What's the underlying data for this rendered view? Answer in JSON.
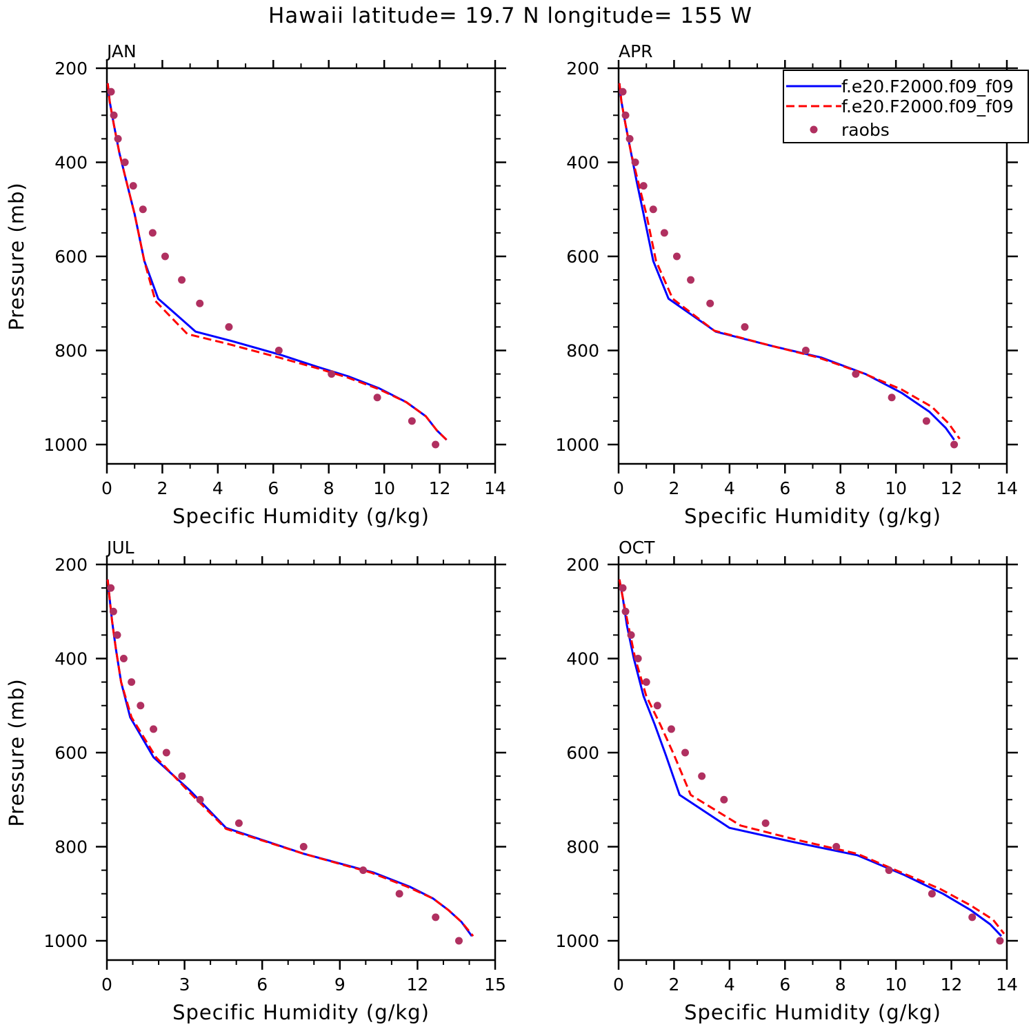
{
  "title": "Hawaii  latitude= 19.7 N longitude= 155 W",
  "legend": {
    "entries": [
      {
        "label": "f.e20.F2000.f09_f09",
        "color": "#0000ff",
        "style": "solid"
      },
      {
        "label": "f.e20.F2000.f09_f09",
        "color": "#ff0000",
        "style": "dashed"
      },
      {
        "label": "raobs",
        "color": "#b03060",
        "style": "dot"
      }
    ]
  },
  "chart_data": [
    {
      "type": "line",
      "title": "JAN",
      "xlabel": "Specific Humidity (g/kg)",
      "ylabel": "Pressure (mb)",
      "xlim": [
        0,
        14
      ],
      "ylim": [
        200,
        1000
      ],
      "y_inverted": true,
      "xticks": [
        0,
        2,
        4,
        6,
        8,
        10,
        12,
        14
      ],
      "yticks": [
        200,
        400,
        600,
        800,
        1000
      ],
      "series": [
        {
          "name": "f.e20.F2000.f09_f09",
          "style": "solid",
          "color": "#0000ff",
          "x": [
            0.03,
            0.1,
            0.25,
            0.45,
            0.7,
            1.0,
            1.35,
            1.85,
            3.2,
            4.5,
            6.3,
            7.6,
            8.7,
            9.8,
            10.8,
            11.5,
            11.9,
            12.25
          ],
          "y": [
            232,
            270,
            320,
            380,
            440,
            510,
            610,
            690,
            760,
            780,
            810,
            835,
            855,
            880,
            910,
            940,
            970,
            990
          ]
        },
        {
          "name": "f.e20.F2000.f09_f09",
          "style": "dashed",
          "color": "#ff0000",
          "x": [
            0.03,
            0.1,
            0.25,
            0.45,
            0.7,
            1.0,
            1.35,
            1.75,
            2.9,
            4.3,
            6.2,
            7.6,
            8.7,
            9.8,
            10.8,
            11.5,
            11.9,
            12.25
          ],
          "y": [
            232,
            270,
            320,
            380,
            440,
            510,
            610,
            695,
            765,
            785,
            815,
            838,
            858,
            882,
            910,
            940,
            970,
            990
          ]
        },
        {
          "name": "raobs",
          "style": "dot",
          "color": "#b03060",
          "x": [
            0.15,
            0.25,
            0.4,
            0.65,
            0.95,
            1.3,
            1.65,
            2.1,
            2.7,
            3.35,
            4.4,
            6.2,
            8.1,
            9.75,
            11.0,
            11.85
          ],
          "y": [
            250,
            300,
            350,
            400,
            450,
            500,
            550,
            600,
            650,
            700,
            750,
            800,
            850,
            900,
            950,
            1000
          ]
        }
      ]
    },
    {
      "type": "line",
      "title": "APR",
      "xlabel": "Specific Humidity (g/kg)",
      "ylabel": "",
      "xlim": [
        0,
        14
      ],
      "ylim": [
        200,
        1000
      ],
      "y_inverted": true,
      "xticks": [
        0,
        2,
        4,
        6,
        8,
        10,
        12,
        14
      ],
      "yticks": [
        200,
        400,
        600,
        800,
        1000
      ],
      "series": [
        {
          "name": "f.e20.F2000.f09_f09",
          "style": "solid",
          "color": "#0000ff",
          "x": [
            0.03,
            0.1,
            0.25,
            0.45,
            0.65,
            0.9,
            1.25,
            1.8,
            3.5,
            5.5,
            7.3,
            8.9,
            10.2,
            11.2,
            11.8,
            12.1
          ],
          "y": [
            232,
            270,
            320,
            380,
            440,
            510,
            610,
            690,
            760,
            790,
            815,
            850,
            890,
            930,
            965,
            990
          ]
        },
        {
          "name": "f.e20.F2000.f09_f09",
          "style": "dashed",
          "color": "#ff0000",
          "x": [
            0.03,
            0.1,
            0.25,
            0.45,
            0.7,
            1.0,
            1.35,
            1.95,
            3.45,
            5.5,
            7.2,
            8.8,
            10.2,
            11.3,
            11.9,
            12.3
          ],
          "y": [
            232,
            270,
            320,
            380,
            440,
            510,
            610,
            690,
            758,
            790,
            815,
            848,
            883,
            920,
            955,
            988
          ]
        },
        {
          "name": "raobs",
          "style": "dot",
          "color": "#b03060",
          "x": [
            0.15,
            0.25,
            0.4,
            0.6,
            0.9,
            1.25,
            1.65,
            2.1,
            2.6,
            3.3,
            4.55,
            6.75,
            8.55,
            9.85,
            11.1,
            12.1
          ],
          "y": [
            250,
            300,
            350,
            400,
            450,
            500,
            550,
            600,
            650,
            700,
            750,
            800,
            850,
            900,
            950,
            1000
          ]
        }
      ]
    },
    {
      "type": "line",
      "title": "JUL",
      "xlabel": "Specific Humidity (g/kg)",
      "ylabel": "Pressure (mb)",
      "xlim": [
        0,
        15
      ],
      "ylim": [
        200,
        1000
      ],
      "y_inverted": true,
      "xticks": [
        0,
        3,
        6,
        9,
        12,
        15
      ],
      "yticks": [
        200,
        400,
        600,
        800,
        1000
      ],
      "series": [
        {
          "name": "f.e20.F2000.f09_f09",
          "style": "solid",
          "color": "#0000ff",
          "x": [
            0.03,
            0.1,
            0.2,
            0.35,
            0.55,
            0.9,
            1.8,
            3.2,
            4.6,
            7.6,
            10.3,
            11.7,
            12.6,
            13.2,
            13.7,
            14.1
          ],
          "y": [
            232,
            270,
            320,
            380,
            450,
            525,
            610,
            680,
            760,
            815,
            855,
            885,
            910,
            935,
            960,
            990
          ]
        },
        {
          "name": "f.e20.F2000.f09_f09",
          "style": "dashed",
          "color": "#ff0000",
          "x": [
            0.03,
            0.1,
            0.2,
            0.35,
            0.55,
            0.95,
            1.9,
            3.2,
            4.6,
            7.6,
            10.2,
            11.6,
            12.6,
            13.2,
            13.7,
            14.15
          ],
          "y": [
            232,
            270,
            320,
            380,
            450,
            525,
            610,
            685,
            762,
            815,
            855,
            885,
            910,
            935,
            960,
            990
          ]
        },
        {
          "name": "raobs",
          "style": "dot",
          "color": "#b03060",
          "x": [
            0.15,
            0.25,
            0.4,
            0.65,
            0.95,
            1.3,
            1.8,
            2.3,
            2.9,
            3.6,
            5.1,
            7.6,
            9.9,
            11.3,
            12.7,
            13.6
          ],
          "y": [
            250,
            300,
            350,
            400,
            450,
            500,
            550,
            600,
            650,
            700,
            750,
            800,
            850,
            900,
            950,
            1000
          ]
        }
      ]
    },
    {
      "type": "line",
      "title": "OCT",
      "xlabel": "Specific Humidity (g/kg)",
      "ylabel": "",
      "xlim": [
        0,
        14
      ],
      "ylim": [
        200,
        1000
      ],
      "y_inverted": true,
      "xticks": [
        0,
        2,
        4,
        6,
        8,
        10,
        12,
        14
      ],
      "yticks": [
        200,
        400,
        600,
        800,
        1000
      ],
      "series": [
        {
          "name": "f.e20.F2000.f09_f09",
          "style": "solid",
          "color": "#0000ff",
          "x": [
            0.03,
            0.15,
            0.3,
            0.55,
            0.9,
            1.3,
            1.7,
            2.2,
            4.0,
            6.3,
            8.6,
            10.3,
            11.7,
            12.7,
            13.4,
            13.8
          ],
          "y": [
            232,
            270,
            330,
            400,
            480,
            540,
            605,
            690,
            760,
            790,
            818,
            860,
            900,
            935,
            965,
            990
          ]
        },
        {
          "name": "f.e20.F2000.f09_f09",
          "style": "dashed",
          "color": "#ff0000",
          "x": [
            0.03,
            0.15,
            0.35,
            0.6,
            1.0,
            1.5,
            2.0,
            2.6,
            4.4,
            6.4,
            8.6,
            10.2,
            11.6,
            12.7,
            13.5,
            13.9
          ],
          "y": [
            232,
            270,
            330,
            400,
            480,
            540,
            605,
            690,
            755,
            785,
            815,
            855,
            890,
            925,
            955,
            985
          ]
        },
        {
          "name": "raobs",
          "style": "dot",
          "color": "#b03060",
          "x": [
            0.15,
            0.25,
            0.45,
            0.7,
            1.0,
            1.4,
            1.9,
            2.4,
            3.0,
            3.8,
            5.3,
            7.85,
            9.75,
            11.3,
            12.75,
            13.75
          ],
          "y": [
            250,
            300,
            350,
            400,
            450,
            500,
            550,
            600,
            650,
            700,
            750,
            800,
            850,
            900,
            950,
            1000
          ]
        }
      ]
    }
  ]
}
